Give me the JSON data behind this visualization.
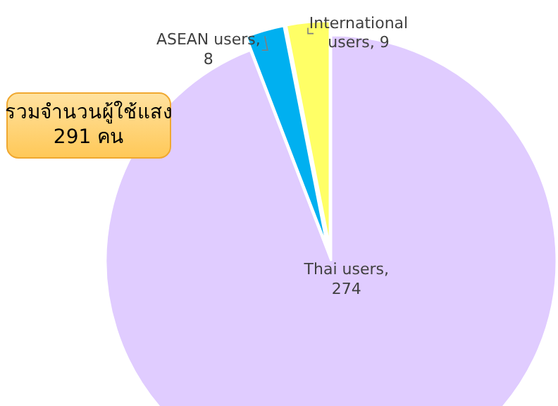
{
  "chart_data": {
    "type": "pie",
    "categories": [
      null,
      null,
      null
    ],
    "values": [
      274,
      8,
      9
    ],
    "colors": [
      "#e0ccff",
      "#00b0f0",
      "#ffff66"
    ],
    "value_labels": [
      "Thai users, 274",
      "ASEAN users, 8",
      "International users, 9"
    ],
    "annotations": [
      "รวมจำนวนผู้ใช้แสง\n291 คน"
    ]
  }
}
